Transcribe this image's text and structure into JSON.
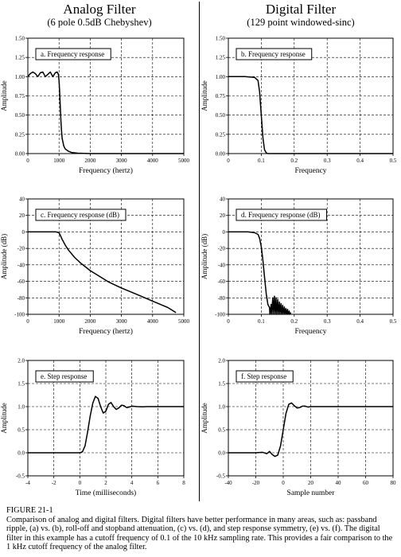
{
  "columns": [
    {
      "title": "Analog Filter",
      "subtitle": "(6 pole 0.5dB Chebyshev)"
    },
    {
      "title": "Digital Filter",
      "subtitle": "(129 point windowed-sinc)"
    }
  ],
  "caption": {
    "label": "FIGURE 21-1",
    "text": "Comparison of analog and digital filters.  Digital filters have better performance in many areas, such as: passband ripple, (a) vs. (b), roll-off and stopband attenuation, (c) vs. (d), and step response symmetry, (e) vs. (f).  The digital filter in this example has a cutoff frequency of 0.1 of the 10 kHz sampling rate.  This provides a fair comparison to the 1 kHz cutoff frequency of the analog filter."
  },
  "colors": {
    "line": "#000000",
    "grid": "#000000",
    "background": "#ffffff"
  },
  "chart_data": [
    {
      "id": "a",
      "type": "line",
      "title": "a.  Frequency response",
      "xlabel": "Frequency (hertz)",
      "ylabel": "Amplitude",
      "xlim": [
        0,
        5000
      ],
      "ylim": [
        0,
        1.5
      ],
      "xticks": [
        "0",
        "1000",
        "2000",
        "3000",
        "4000",
        "5000"
      ],
      "yticks": [
        "0.00",
        "0.25",
        "0.50",
        "0.75",
        "1.00",
        "1.25",
        "1.50"
      ],
      "grid": "dashed",
      "series": [
        {
          "x": [
            0,
            80,
            160,
            240,
            320,
            400,
            480,
            560,
            640,
            720,
            800,
            880,
            940,
            980,
            1000,
            1020,
            1040,
            1060,
            1080,
            1100,
            1150,
            1200,
            1300,
            1400,
            1600,
            2000,
            2500,
            3000,
            4000,
            5000
          ],
          "y": [
            1.0,
            1.04,
            1.06,
            1.04,
            1.0,
            1.05,
            1.06,
            1.0,
            1.03,
            1.06,
            1.0,
            1.05,
            1.06,
            1.03,
            0.95,
            0.8,
            0.6,
            0.42,
            0.3,
            0.2,
            0.1,
            0.06,
            0.03,
            0.015,
            0.005,
            0.0,
            0.0,
            0.0,
            0.0,
            0.0
          ]
        }
      ]
    },
    {
      "id": "b",
      "type": "line",
      "title": "b.  Frequency response",
      "xlabel": "Frequency",
      "ylabel": "Amplitude",
      "xlim": [
        0,
        0.5
      ],
      "ylim": [
        0,
        1.5
      ],
      "xticks": [
        "0",
        "0.1",
        "0.2",
        "0.3",
        "0.4",
        "0.5"
      ],
      "yticks": [
        "0.00",
        "0.25",
        "0.50",
        "0.75",
        "1.00",
        "1.25",
        "1.50"
      ],
      "grid": "dashed",
      "series": [
        {
          "x": [
            0,
            0.05,
            0.08,
            0.09,
            0.095,
            0.1,
            0.105,
            0.11,
            0.115,
            0.12,
            0.2,
            0.3,
            0.4,
            0.5
          ],
          "y": [
            1.0,
            1.0,
            0.99,
            0.95,
            0.8,
            0.5,
            0.2,
            0.05,
            0.01,
            0.0,
            0.0,
            0.0,
            0.0,
            0.0
          ]
        }
      ]
    },
    {
      "id": "c",
      "type": "line",
      "title": "c.  Frequency response (dB)",
      "xlabel": "Frequency (hertz)",
      "ylabel": "Amplitude (dB)",
      "xlim": [
        0,
        5000
      ],
      "ylim": [
        -100,
        40
      ],
      "xticks": [
        "0",
        "1000",
        "2000",
        "3000",
        "4000",
        "5000"
      ],
      "yticks": [
        "-100",
        "-80",
        "-60",
        "-40",
        "-20",
        "0",
        "20",
        "40"
      ],
      "grid": "dashed",
      "series": [
        {
          "x": [
            0,
            500,
            900,
            1000,
            1050,
            1100,
            1200,
            1300,
            1500,
            1700,
            2000,
            2300,
            2600,
            3000,
            3500,
            4000,
            4500,
            4750
          ],
          "y": [
            0,
            0,
            0,
            -1,
            -5,
            -9,
            -16,
            -22,
            -31,
            -38,
            -47,
            -54,
            -61,
            -68,
            -76,
            -84,
            -92,
            -98
          ]
        }
      ]
    },
    {
      "id": "d",
      "type": "line",
      "title": "d.  Frequency response (dB)",
      "xlabel": "Frequency",
      "ylabel": "Amplitude (dB)",
      "xlim": [
        0,
        0.5
      ],
      "ylim": [
        -100,
        40
      ],
      "xticks": [
        "0",
        "0.1",
        "0.2",
        "0.3",
        "0.4",
        "0.5"
      ],
      "yticks": [
        "-100",
        "-80",
        "-60",
        "-40",
        "-20",
        "0",
        "20",
        "40"
      ],
      "grid": "dashed",
      "series": [
        {
          "x": [
            0,
            0.06,
            0.08,
            0.09,
            0.095,
            0.1,
            0.105,
            0.11,
            0.115,
            0.12,
            0.125,
            0.126,
            0.13,
            0.131,
            0.135,
            0.136,
            0.14,
            0.141,
            0.145,
            0.146,
            0.15,
            0.151,
            0.155,
            0.156,
            0.16,
            0.161,
            0.165,
            0.166,
            0.17,
            0.171,
            0.175,
            0.176,
            0.18,
            0.181,
            0.185,
            0.186,
            0.19
          ],
          "y": [
            0,
            0,
            -1,
            -3,
            -8,
            -18,
            -35,
            -55,
            -75,
            -88,
            -92,
            -100,
            -88,
            -100,
            -80,
            -100,
            -78,
            -100,
            -80,
            -100,
            -82,
            -100,
            -85,
            -100,
            -87,
            -100,
            -89,
            -100,
            -91,
            -100,
            -93,
            -100,
            -94,
            -100,
            -96,
            -100,
            -98
          ]
        }
      ]
    },
    {
      "id": "e",
      "type": "line",
      "title": "e.  Step response",
      "xlabel": "Time (milliseconds)",
      "ylabel": "Amplitude",
      "xlim": [
        -4,
        8
      ],
      "ylim": [
        -0.5,
        2.0
      ],
      "xticks": [
        "-4",
        "-2",
        "0",
        "2",
        "4",
        "6",
        "8"
      ],
      "yticks": [
        "-0.5",
        "0.0",
        "0.5",
        "1.0",
        "1.5",
        "2.0"
      ],
      "grid": "dashed",
      "series": [
        {
          "x": [
            -4,
            0,
            0.2,
            0.4,
            0.6,
            0.8,
            1.0,
            1.2,
            1.4,
            1.6,
            1.8,
            2.0,
            2.2,
            2.4,
            2.6,
            2.8,
            3.0,
            3.2,
            3.4,
            3.6,
            3.8,
            4.0,
            4.4,
            4.8,
            5.2,
            6,
            7,
            8
          ],
          "y": [
            0,
            0,
            0.02,
            0.15,
            0.45,
            0.8,
            1.08,
            1.22,
            1.18,
            1.0,
            0.86,
            0.9,
            1.05,
            1.09,
            1.0,
            0.94,
            0.97,
            1.03,
            1.02,
            0.98,
            0.99,
            1.01,
            1.0,
            0.995,
            1.0,
            1.0,
            1.0,
            1.0
          ]
        }
      ]
    },
    {
      "id": "f",
      "type": "line",
      "title": "f.  Step response",
      "xlabel": "Sample number",
      "ylabel": "Amplitude",
      "xlim": [
        -40,
        80
      ],
      "ylim": [
        -0.5,
        2.0
      ],
      "xticks": [
        "-40",
        "-20",
        "0",
        "20",
        "40",
        "60",
        "80"
      ],
      "yticks": [
        "-0.5",
        "0.0",
        "0.5",
        "1.0",
        "1.5",
        "2.0"
      ],
      "grid": "dashed",
      "series": [
        {
          "x": [
            -40,
            -20,
            -15,
            -12,
            -10,
            -8,
            -6,
            -4,
            -2,
            0,
            2,
            4,
            6,
            8,
            10,
            12,
            14,
            16,
            18,
            20,
            25,
            40,
            80
          ],
          "y": [
            0,
            0,
            0.01,
            -0.02,
            0.03,
            -0.04,
            -0.08,
            -0.05,
            0.15,
            0.5,
            0.85,
            1.05,
            1.08,
            1.02,
            0.97,
            0.98,
            1.01,
            1.01,
            0.99,
            1.0,
            1.0,
            1.0,
            1.0
          ]
        }
      ]
    }
  ]
}
